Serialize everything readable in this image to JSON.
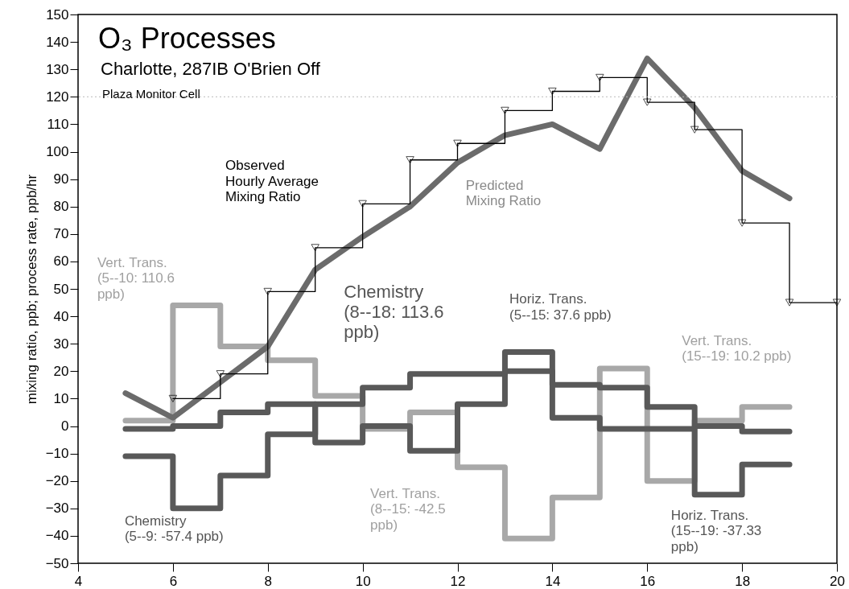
{
  "chart_data": {
    "type": "step",
    "title": "O₃ Processes",
    "subtitle": "Charlotte, 287IB O'Brien Off",
    "ylabel": "mixing ratio, ppb; process rate, ppb/hr",
    "xlim": [
      4,
      20
    ],
    "xticks": [
      4,
      6,
      8,
      10,
      12,
      14,
      16,
      18,
      20
    ],
    "ylim": [
      -50,
      150
    ],
    "yticks": [
      -50,
      -40,
      -30,
      -20,
      -10,
      0,
      10,
      20,
      30,
      40,
      50,
      60,
      70,
      80,
      90,
      100,
      110,
      120,
      130,
      140,
      150
    ],
    "x": [
      5,
      6,
      7,
      8,
      9,
      10,
      11,
      12,
      13,
      14,
      15,
      16,
      17,
      18,
      19
    ],
    "series": [
      {
        "color": "#a8a8a8",
        "values": [
          2,
          44,
          29,
          24,
          11,
          -1,
          5,
          -15,
          -41,
          -26,
          21,
          -20,
          2,
          7,
          7
        ]
      },
      {
        "color": "#595959",
        "values": [
          -11,
          -30,
          -18,
          -3,
          8,
          14,
          19,
          19,
          20,
          15,
          14,
          7,
          0,
          -2,
          -2
        ]
      },
      {
        "color": "#595959",
        "values": [
          -1,
          0,
          5,
          8,
          -6,
          0,
          -9,
          8,
          27,
          3,
          -1,
          -1,
          -25,
          -14,
          -14
        ]
      },
      {
        "type": "line",
        "color": "#6b6b6b",
        "values": [
          12,
          3,
          16,
          29,
          57,
          69,
          80,
          96,
          106,
          110,
          101,
          134,
          116,
          93,
          83
        ]
      },
      {
        "color": "#000000",
        "marker": "triangle",
        "x": [
          6,
          7,
          8,
          9,
          10,
          11,
          12,
          13,
          14,
          15,
          16,
          17,
          18,
          19,
          20
        ],
        "values": [
          10,
          19,
          49,
          65,
          81,
          97,
          103,
          115,
          122,
          127,
          118,
          108,
          74,
          45,
          45
        ]
      }
    ],
    "ref_lines": [
      {
        "axis": "y",
        "value": 120,
        "color": "#bbbbbb",
        "line_style": "dotted"
      }
    ],
    "annotations": [
      "Plaza Monitor Cell",
      {
        "text": "Vert. Trans.\n(5--10: 110.6\nppb)",
        "x": 6,
        "y": 34
      },
      "Observed\nHourly Average\nMixing Ratio",
      {
        "text": "Predicted\nMixing Ratio",
        "x": 11.8,
        "y": 90
      },
      {
        "text": "Chemistry\n(8--18: 113.6\nppb)",
        "x": 11.3,
        "y": 19
      },
      {
        "text": "Horiz. Trans.\n(5--15: 37.6 ppb)",
        "x": 13.4,
        "y": 27
      },
      {
        "text": "Vert. Trans.\n(15--19: 10.2 ppb)",
        "x": 16,
        "y": 16
      },
      {
        "text": "Vert. Trans.\n(8--15: -42.5\nppb)",
        "x": 12.4,
        "y": -15
      },
      {
        "text": "Horiz. Trans.\n(15--19: -37.33\nppb)",
        "x": 17.3,
        "y": -25
      },
      {
        "text": "Chemistry\n(5--9: -57.4 ppb)",
        "x": 6,
        "y": -20
      }
    ],
    "grid": false
  }
}
